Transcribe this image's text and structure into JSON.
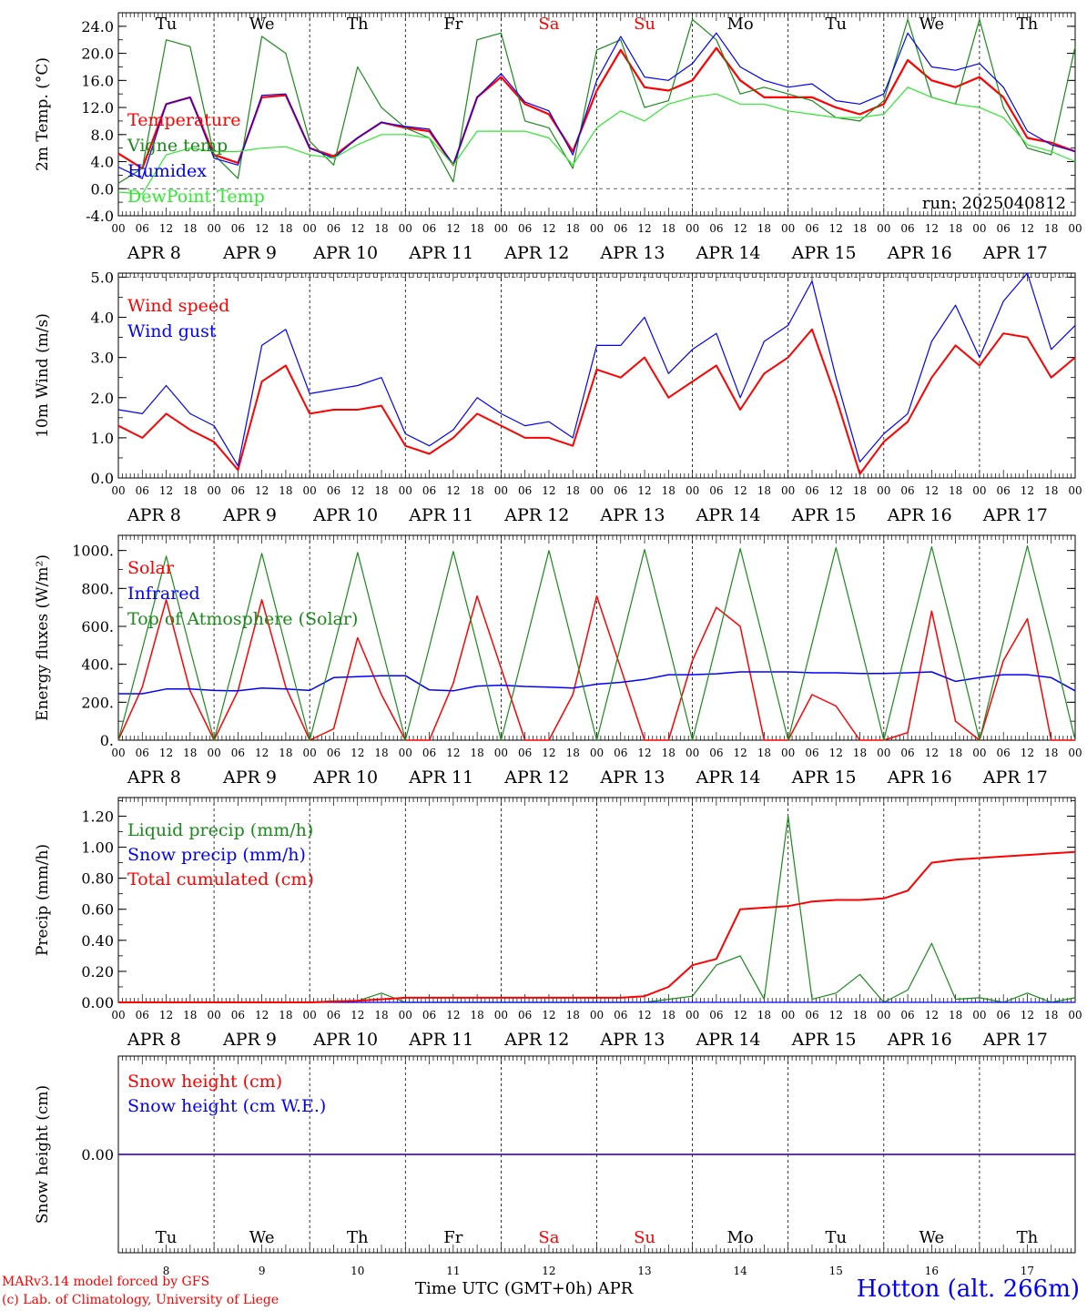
{
  "footer": {
    "model": "MARv3.14 model forced by GFS",
    "credit": "(c) Lab. of Climatology, University of Liege",
    "station": "Hotton (alt. 266m)",
    "time_axis": "Time UTC (GMT+0h) APR"
  },
  "colors": {
    "red": "#ff0000",
    "blue": "#0000ff",
    "green": "#1a8a1a",
    "lightgreen": "#2ee82e"
  },
  "x_axis": {
    "hour_ticks": [
      "00",
      "06",
      "12",
      "18"
    ],
    "day_labels": [
      "APR  8",
      "APR  9",
      "APR 10",
      "APR 11",
      "APR 12",
      "APR 13",
      "APR 14",
      "APR 15",
      "APR 16",
      "APR 17"
    ],
    "weekdays": [
      "Tu",
      "We",
      "Th",
      "Fr",
      "Sa",
      "Su",
      "Mo",
      "Tu",
      "We",
      "Th"
    ],
    "weekend_index": [
      4,
      5
    ],
    "day_numbers": [
      "8",
      "9",
      "10",
      "11",
      "12",
      "13",
      "14",
      "15",
      "16",
      "17"
    ],
    "end_tick": "00"
  },
  "chart_data": [
    {
      "id": "temp",
      "type": "line",
      "ylabel": "2m Temp. (°C)",
      "ylim": [
        -4,
        26
      ],
      "yticks": [
        "-4.0",
        "0.0",
        "4.0",
        "8.0",
        "12.0",
        "16.0",
        "20.0",
        "24.0"
      ],
      "ytick_values": [
        -4,
        0,
        4,
        8,
        12,
        16,
        20,
        24
      ],
      "reference_line": 0,
      "annotation": "run: 2025040812",
      "x_hours": [
        0,
        6,
        12,
        18,
        24,
        30,
        36,
        42,
        48,
        54,
        60,
        66,
        72,
        78,
        84,
        90,
        96,
        102,
        108,
        114,
        120,
        126,
        132,
        138,
        144,
        150,
        156,
        162,
        168,
        174,
        180,
        186,
        192,
        198,
        204,
        210,
        216,
        222,
        228,
        234,
        240
      ],
      "series": [
        {
          "name": "Temperature",
          "color": "#ff0000",
          "width": 2.2,
          "values": [
            5.2,
            3.0,
            12.5,
            13.5,
            5.0,
            3.8,
            13.5,
            13.8,
            6.0,
            4.8,
            7.5,
            9.8,
            9.0,
            8.5,
            3.5,
            13.5,
            16.5,
            12.5,
            11.0,
            5.5,
            14.5,
            20.5,
            15.0,
            14.5,
            16.0,
            20.8,
            16.0,
            13.5,
            13.5,
            13.5,
            12.0,
            11.0,
            12.5,
            19.0,
            16.0,
            15.0,
            16.5,
            13.5,
            7.5,
            6.8,
            5.5
          ]
        },
        {
          "name": "Vigne temp",
          "color": "#1a8a1a",
          "width": 1.2,
          "values": [
            0.8,
            3.0,
            22.0,
            21.0,
            5.0,
            1.5,
            22.5,
            20.0,
            7.0,
            3.5,
            18.0,
            12.0,
            9.0,
            7.5,
            1.0,
            22.0,
            23.0,
            10.0,
            9.0,
            3.0,
            20.5,
            22.0,
            12.0,
            13.0,
            25.0,
            22.0,
            14.0,
            15.0,
            14.0,
            13.0,
            10.5,
            10.0,
            13.0,
            25.0,
            13.5,
            12.5,
            25.0,
            12.0,
            6.0,
            5.0,
            21.0
          ]
        },
        {
          "name": "Humidex",
          "color": "#0000ff",
          "width": 1.2,
          "values": [
            3.2,
            1.5,
            12.5,
            13.5,
            4.5,
            3.5,
            13.8,
            14.0,
            6.0,
            4.5,
            7.5,
            9.8,
            9.2,
            8.8,
            3.5,
            13.5,
            17.0,
            12.8,
            11.5,
            5.0,
            16.0,
            22.5,
            16.5,
            16.0,
            18.5,
            23.0,
            18.0,
            16.0,
            15.0,
            15.5,
            13.0,
            12.5,
            14.0,
            23.0,
            18.0,
            17.5,
            18.5,
            15.0,
            8.5,
            6.5,
            5.5
          ]
        },
        {
          "name": "DewPoint Temp",
          "color": "#2ee82e",
          "width": 1.2,
          "values": [
            -0.5,
            -0.8,
            5.0,
            6.0,
            5.5,
            5.5,
            6.0,
            6.2,
            5.0,
            4.5,
            6.5,
            8.0,
            8.0,
            7.5,
            3.5,
            8.5,
            8.5,
            8.5,
            7.5,
            3.5,
            9.0,
            11.5,
            10.0,
            12.5,
            13.5,
            14.0,
            12.5,
            12.5,
            11.5,
            11.0,
            10.5,
            10.5,
            11.0,
            15.0,
            13.5,
            12.5,
            12.0,
            10.5,
            6.5,
            5.5,
            4.0
          ]
        }
      ]
    },
    {
      "id": "wind",
      "type": "line",
      "ylabel": "10m Wind (m/s)",
      "ylim": [
        0,
        5.1
      ],
      "yticks": [
        "0.0",
        "1.0",
        "2.0",
        "3.0",
        "4.0",
        "5.0"
      ],
      "ytick_values": [
        0,
        1,
        2,
        3,
        4,
        5
      ],
      "reference_line": 5,
      "x_hours": [
        0,
        6,
        12,
        18,
        24,
        30,
        36,
        42,
        48,
        54,
        60,
        66,
        72,
        78,
        84,
        90,
        96,
        102,
        108,
        114,
        120,
        126,
        132,
        138,
        144,
        150,
        156,
        162,
        168,
        174,
        180,
        186,
        192,
        198,
        204,
        210,
        216,
        222,
        228,
        234,
        240
      ],
      "series": [
        {
          "name": "Wind speed",
          "color": "#ff0000",
          "width": 2.0,
          "values": [
            1.3,
            1.0,
            1.6,
            1.2,
            0.9,
            0.2,
            2.4,
            2.8,
            1.6,
            1.7,
            1.7,
            1.8,
            0.8,
            0.6,
            1.0,
            1.6,
            1.3,
            1.0,
            1.0,
            0.8,
            2.7,
            2.5,
            3.0,
            2.0,
            2.4,
            2.8,
            1.7,
            2.6,
            3.0,
            3.7,
            2.0,
            0.1,
            0.9,
            1.4,
            2.5,
            3.3,
            2.8,
            3.6,
            3.5,
            2.5,
            3.0
          ]
        },
        {
          "name": "Wind gust",
          "color": "#0000ff",
          "width": 1.2,
          "values": [
            1.7,
            1.6,
            2.3,
            1.6,
            1.3,
            0.3,
            3.3,
            3.7,
            2.1,
            2.2,
            2.3,
            2.5,
            1.1,
            0.8,
            1.2,
            2.0,
            1.6,
            1.3,
            1.4,
            1.0,
            3.3,
            3.3,
            4.0,
            2.6,
            3.2,
            3.6,
            2.0,
            3.4,
            3.8,
            4.9,
            2.5,
            0.4,
            1.1,
            1.6,
            3.4,
            4.3,
            3.0,
            4.4,
            5.1,
            3.2,
            3.8
          ]
        }
      ]
    },
    {
      "id": "energy",
      "type": "line",
      "ylabel": "Energy fluxes (W/m²)",
      "ylim": [
        0,
        1080
      ],
      "yticks": [
        "0.",
        "200.",
        "400.",
        "600.",
        "800.",
        "1000."
      ],
      "ytick_values": [
        0,
        200,
        400,
        600,
        800,
        1000
      ],
      "x_hours": [
        0,
        6,
        12,
        18,
        24,
        30,
        36,
        42,
        48,
        54,
        60,
        66,
        72,
        78,
        84,
        90,
        96,
        102,
        108,
        114,
        120,
        126,
        132,
        138,
        144,
        150,
        156,
        162,
        168,
        174,
        180,
        186,
        192,
        198,
        204,
        210,
        216,
        222,
        228,
        234,
        240
      ],
      "series": [
        {
          "name": "Solar",
          "color": "#ff0000",
          "width": 1.5,
          "values": [
            0,
            280,
            740,
            260,
            0,
            260,
            740,
            280,
            0,
            60,
            540,
            240,
            0,
            0,
            300,
            760,
            380,
            0,
            0,
            240,
            760,
            380,
            0,
            0,
            420,
            700,
            600,
            0,
            0,
            240,
            180,
            0,
            0,
            40,
            680,
            100,
            0,
            420,
            640,
            0,
            0
          ]
        },
        {
          "name": "Infrared",
          "color": "#0000ff",
          "width": 1.5,
          "values": [
            245,
            245,
            270,
            270,
            262,
            260,
            275,
            270,
            262,
            330,
            335,
            340,
            340,
            265,
            260,
            285,
            290,
            283,
            280,
            275,
            295,
            305,
            320,
            345,
            345,
            350,
            360,
            360,
            360,
            355,
            355,
            352,
            352,
            355,
            360,
            310,
            330,
            345,
            345,
            330,
            260
          ]
        },
        {
          "name": "Top of Atmosphere (Solar)",
          "color": "#1a8a1a",
          "width": 1.2,
          "values": [
            0,
            480,
            970,
            480,
            0,
            480,
            985,
            490,
            0,
            485,
            990,
            495,
            0,
            490,
            995,
            500,
            0,
            495,
            1000,
            500,
            0,
            500,
            1005,
            505,
            0,
            505,
            1010,
            510,
            0,
            510,
            1015,
            515,
            0,
            515,
            1020,
            520,
            0,
            520,
            1025,
            525,
            0
          ]
        }
      ]
    },
    {
      "id": "precip",
      "type": "line",
      "ylabel": "Precip (mm/h)",
      "ylim": [
        0,
        1.32
      ],
      "yticks": [
        "0.00",
        "0.20",
        "0.40",
        "0.60",
        "0.80",
        "1.00",
        "1.20"
      ],
      "ytick_values": [
        0,
        0.2,
        0.4,
        0.6,
        0.8,
        1.0,
        1.2
      ],
      "x_hours": [
        0,
        6,
        12,
        18,
        24,
        30,
        36,
        42,
        48,
        54,
        60,
        66,
        72,
        78,
        84,
        90,
        96,
        102,
        108,
        114,
        120,
        126,
        132,
        138,
        144,
        150,
        156,
        162,
        168,
        174,
        180,
        186,
        192,
        198,
        204,
        210,
        216,
        222,
        228,
        234,
        240
      ],
      "series": [
        {
          "name": "Liquid precip (mm/h)",
          "color": "#1a8a1a",
          "width": 1.2,
          "values": [
            0,
            0,
            0,
            0,
            0,
            0,
            0,
            0,
            0,
            0.01,
            0.01,
            0.06,
            0,
            0,
            0,
            0,
            0,
            0,
            0,
            0,
            0,
            0,
            0,
            0.02,
            0.04,
            0.24,
            0.3,
            0.02,
            1.2,
            0.02,
            0.06,
            0.18,
            0,
            0.08,
            0.38,
            0.02,
            0.03,
            0,
            0.06,
            0,
            0.03
          ]
        },
        {
          "name": "Snow precip (mm/h)",
          "color": "#0000ff",
          "width": 1.2,
          "values": [
            0,
            0,
            0,
            0,
            0,
            0,
            0,
            0,
            0,
            0,
            0,
            0,
            0,
            0,
            0,
            0,
            0,
            0,
            0,
            0,
            0,
            0,
            0,
            0,
            0,
            0,
            0,
            0,
            0,
            0,
            0,
            0,
            0,
            0,
            0,
            0,
            0,
            0,
            0,
            0,
            0
          ]
        },
        {
          "name": "Total cumulated (cm)",
          "color": "#ff0000",
          "width": 2.0,
          "values": [
            0,
            0,
            0,
            0,
            0,
            0,
            0,
            0,
            0,
            0.005,
            0.01,
            0.02,
            0.03,
            0.03,
            0.03,
            0.03,
            0.03,
            0.03,
            0.03,
            0.03,
            0.03,
            0.03,
            0.04,
            0.1,
            0.24,
            0.28,
            0.6,
            0.61,
            0.62,
            0.65,
            0.66,
            0.66,
            0.67,
            0.72,
            0.9,
            0.92,
            0.93,
            0.94,
            0.95,
            0.96,
            0.97
          ]
        }
      ]
    },
    {
      "id": "snow",
      "type": "line",
      "ylabel": "Snow height (cm)",
      "ylim": [
        -1,
        1
      ],
      "yticks": [
        "0.00"
      ],
      "ytick_values": [
        0
      ],
      "x_hours": [
        0,
        240
      ],
      "series": [
        {
          "name": "Snow height (cm)",
          "color": "#ff0000",
          "width": 1.5,
          "values": [
            0,
            0
          ]
        },
        {
          "name": "Snow height (cm W.E.)",
          "color": "#0000ff",
          "width": 1.2,
          "values": [
            0,
            0
          ]
        }
      ]
    }
  ]
}
